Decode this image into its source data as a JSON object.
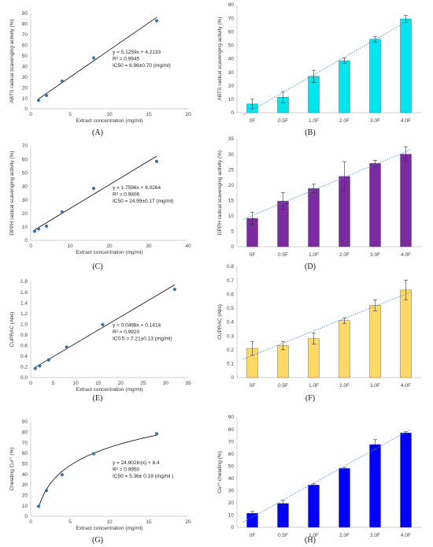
{
  "chart_data": [
    {
      "id": "A",
      "panel_label": "(A)",
      "type": "scatter",
      "x": [
        1,
        2,
        4,
        8,
        16
      ],
      "y": [
        8.0,
        12.5,
        26.0,
        48.0,
        83.0
      ],
      "xlim": [
        0,
        20
      ],
      "ylim": [
        0,
        90
      ],
      "xticks": [
        "0",
        "5",
        "10",
        "15",
        "20"
      ],
      "yticks": [
        "0",
        "10",
        "20",
        "30",
        "40",
        "50",
        "60",
        "70",
        "80",
        "90"
      ],
      "xlabel": "Extract concentration (mg/ml)",
      "ylabel": "ABTS radical scavenging activity (%)",
      "fit": {
        "kind": "linear",
        "slope": 5.1259,
        "intercept": 4.2133
      },
      "annotations": [
        "y = 5.1259x + 4.2133",
        "R² = 0.9945",
        "IC50 = 8.96±0.70 (mg/ml)"
      ],
      "marker_color": "#2e75b6"
    },
    {
      "id": "B",
      "panel_label": "(B)",
      "type": "bar",
      "categories": [
        "0F",
        "0.5F",
        "1.0F",
        "2.0F",
        "3.0F",
        "4.0F"
      ],
      "values": [
        6.5,
        11.5,
        27.0,
        38.5,
        54.5,
        69.5
      ],
      "errors": [
        3.5,
        4.0,
        4.5,
        2.0,
        2.0,
        2.5
      ],
      "ylim": [
        0,
        80
      ],
      "yticks": [
        "0",
        "10",
        "20",
        "30",
        "40",
        "50",
        "60",
        "70",
        "80"
      ],
      "ylabel": "ABTS radical scavenging activity (%)",
      "bar_color": "#00e5ee",
      "trend_color": "#4a90d9"
    },
    {
      "id": "C",
      "panel_label": "(C)",
      "type": "scatter",
      "x": [
        1,
        2,
        4,
        8,
        16,
        32
      ],
      "y": [
        6.8,
        8.5,
        10.5,
        21.0,
        38.5,
        58.5
      ],
      "xlim": [
        0,
        40
      ],
      "ylim": [
        0,
        70
      ],
      "xticks": [
        "0",
        "10",
        "20",
        "30",
        "40"
      ],
      "yticks": [
        "0",
        "10",
        "20",
        "30",
        "40",
        "50",
        "60",
        "70"
      ],
      "xlabel": "Extract concentration (mg/ml)",
      "ylabel": "DPPH radical scavenging activity (%)",
      "fit": {
        "kind": "linear",
        "slope": 1.7596,
        "intercept": 6.0264
      },
      "annotations": [
        "y = 1.7596x + 6.0264",
        "R² = 0.9806",
        "IC50 = 24.99±0.17 (mg/ml)"
      ],
      "marker_color": "#2e75b6"
    },
    {
      "id": "D",
      "panel_label": "(D)",
      "type": "bar",
      "categories": [
        "0F",
        "0.5F",
        "1.0F",
        "2.0F",
        "3.0F",
        "4.0F"
      ],
      "values": [
        9.2,
        14.8,
        18.9,
        22.8,
        27.0,
        30.0
      ],
      "errors": [
        2.0,
        2.7,
        1.4,
        4.8,
        1.0,
        2.4
      ],
      "ylim": [
        0,
        35
      ],
      "yticks": [
        "0",
        "5",
        "10",
        "15",
        "20",
        "25",
        "30",
        "35"
      ],
      "ylabel": "DPPH radical scavenging activity (%)",
      "bar_color": "#7b2ba0",
      "trend_color": "#4a90d9"
    },
    {
      "id": "E",
      "panel_label": "(E)",
      "type": "scatter",
      "x": [
        1,
        2,
        4,
        8,
        16,
        32
      ],
      "y": [
        0.17,
        0.22,
        0.33,
        0.57,
        0.99,
        1.65
      ],
      "xlim": [
        0,
        35
      ],
      "ylim": [
        0,
        1.8
      ],
      "xticks": [
        "0",
        "5",
        "10",
        "15",
        "20",
        "25",
        "30",
        "35"
      ],
      "yticks": [
        "0.0",
        "0.2",
        "0.4",
        "0.6",
        "0.8",
        "1.0",
        "1.2",
        "1.4",
        "1.6",
        "1.8"
      ],
      "xlabel": "Extract concentration (mg/ml)",
      "ylabel": "CUPRAC (Abs)",
      "fit": {
        "kind": "linear",
        "slope": 0.0498,
        "intercept": 0.1414
      },
      "annotations": [
        "y = 0.0498x + 0.1414",
        "R² = 0.9920",
        "IC0.5 = 7.21±0.13 (mg/ml)"
      ],
      "marker_color": "#2e75b6"
    },
    {
      "id": "F",
      "panel_label": "(F)",
      "type": "bar",
      "categories": [
        "0F",
        "0.5F",
        "1.0F",
        "2.0F",
        "3.0F",
        "4.0F"
      ],
      "values": [
        0.21,
        0.23,
        0.28,
        0.41,
        0.52,
        0.63
      ],
      "errors": [
        0.05,
        0.03,
        0.04,
        0.02,
        0.04,
        0.07
      ],
      "ylim": [
        0,
        0.8
      ],
      "yticks": [
        "0",
        "0.1",
        "0.2",
        "0.3",
        "0.4",
        "0.5",
        "0.6",
        "0.7",
        "0.8"
      ],
      "ylabel": "CUPRAC (Abs)",
      "bar_color": "#ffd966",
      "trend_color": "#4a90d9"
    },
    {
      "id": "G",
      "panel_label": "(G)",
      "type": "scatter",
      "x": [
        1,
        2,
        4,
        8,
        16
      ],
      "y": [
        9.5,
        24.5,
        39.5,
        59.5,
        78.5
      ],
      "xlim": [
        0,
        20
      ],
      "ylim": [
        0,
        90
      ],
      "xticks": [
        "0",
        "5",
        "10",
        "15",
        "20"
      ],
      "yticks": [
        "0",
        "10",
        "20",
        "30",
        "40",
        "50",
        "60",
        "70",
        "80",
        "90"
      ],
      "xlabel": "Extract concentration (mg/ml)",
      "ylabel": "Chelating Cu²⁺ (%)",
      "fit": {
        "kind": "log",
        "a": 24.802,
        "b": 8.4
      },
      "annotations": [
        "y = 24.802ln(x) + 8.4",
        "R² = 0.9950",
        "IC50 = 5.36± 0.19 (mg/ml )"
      ],
      "marker_color": "#2e75b6"
    },
    {
      "id": "H",
      "panel_label": "(H)",
      "type": "bar",
      "categories": [
        "0F",
        "0.5F",
        "1.0F",
        "2.0F",
        "3.0F",
        "4.0F"
      ],
      "values": [
        11.5,
        19.5,
        34.5,
        48.0,
        67.5,
        77.0
      ],
      "errors": [
        1.5,
        2.5,
        1.0,
        0.8,
        4.0,
        1.0
      ],
      "ylim": [
        0,
        90
      ],
      "yticks": [
        "0",
        "10",
        "20",
        "30",
        "40",
        "50",
        "60",
        "70",
        "80",
        "90"
      ],
      "ylabel": "Cu²⁺ chelating (%)",
      "bar_color": "#0000ff",
      "trend_color": "#4a90d9"
    }
  ]
}
